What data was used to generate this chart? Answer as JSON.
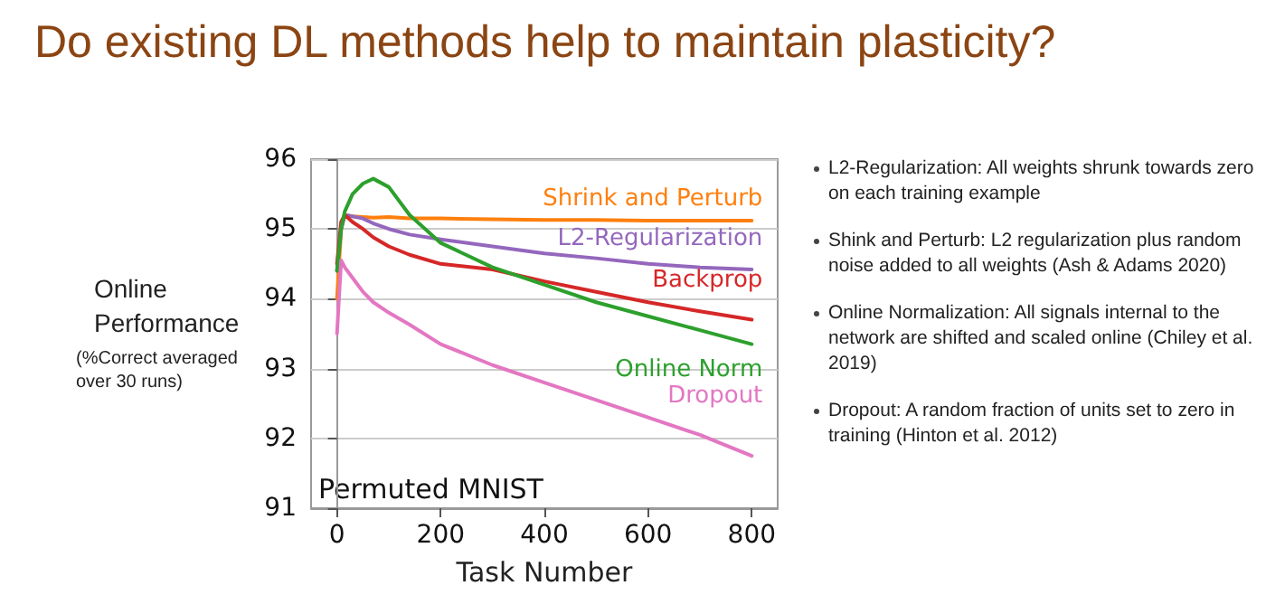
{
  "chart_data": {
    "type": "line",
    "title": "Do existing DL methods help to maintain plasticity?",
    "xlabel": "Task Number",
    "ylabel": "Online Performance",
    "x": [
      0,
      8,
      15,
      30,
      50,
      70,
      100,
      140,
      200,
      300,
      400,
      500,
      600,
      700,
      800
    ],
    "series": [
      {
        "name": "Shrink and Perturb",
        "color": "#ff7f0e",
        "values": [
          94.0,
          95.0,
          95.2,
          95.18,
          95.17,
          95.16,
          95.17,
          95.15,
          95.15,
          95.14,
          95.13,
          95.13,
          95.12,
          95.12,
          95.12
        ]
      },
      {
        "name": "L2-Regularization",
        "color": "#9467bd",
        "values": [
          94.4,
          95.0,
          95.2,
          95.18,
          95.15,
          95.08,
          95.0,
          94.92,
          94.85,
          94.75,
          94.65,
          94.58,
          94.5,
          94.45,
          94.42
        ]
      },
      {
        "name": "Backprop",
        "color": "#d62728",
        "values": [
          94.5,
          95.1,
          95.2,
          95.1,
          95.0,
          94.88,
          94.75,
          94.63,
          94.5,
          94.42,
          94.25,
          94.1,
          93.95,
          93.82,
          93.7
        ]
      },
      {
        "name": "Online Norm",
        "color": "#2ca02c",
        "values": [
          94.4,
          95.0,
          95.25,
          95.5,
          95.65,
          95.72,
          95.6,
          95.2,
          94.8,
          94.45,
          94.2,
          93.95,
          93.75,
          93.55,
          93.35
        ]
      },
      {
        "name": "Dropout",
        "color": "#e377c2",
        "values": [
          93.5,
          94.55,
          94.45,
          94.3,
          94.1,
          93.95,
          93.8,
          93.63,
          93.35,
          93.05,
          92.8,
          92.55,
          92.3,
          92.05,
          91.75
        ]
      }
    ],
    "xlim": [
      -50,
      850
    ],
    "xticks": [
      0,
      200,
      400,
      600,
      800
    ],
    "ylim": [
      91,
      96
    ],
    "yticks": [
      91,
      92,
      93,
      94,
      95,
      96
    ],
    "grid": "y",
    "legend": false,
    "marker": "none",
    "line_style": "solid",
    "annotations": [
      "Permuted MNIST",
      "(%Correct averaged over 30 runs)",
      "L2-Regularization: All weights shrunk towards zero on each training example",
      "Shink and Perturb: L2 regularization plus random noise added to all weights (Ash & Adams 2020)",
      "Online Normalization: All signals internal to the network are shifted and scaled online (Chiley et al. 2019)",
      "Dropout: A random fraction of units set to zero in training (Hinton et al. 2012)"
    ]
  }
}
